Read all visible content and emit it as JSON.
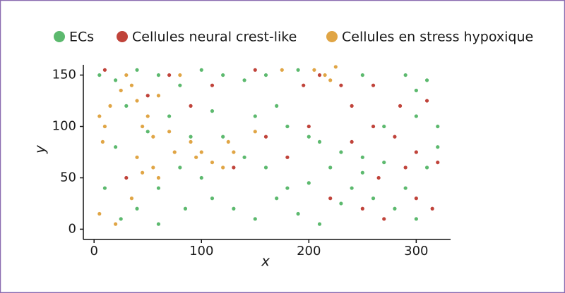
{
  "chart_data": {
    "type": "scatter",
    "x_label": "x",
    "y_label": "y",
    "xlim": [
      -10,
      332
    ],
    "ylim": [
      -10,
      160
    ],
    "xticks": [
      0,
      100,
      200,
      300
    ],
    "yticks": [
      0,
      50,
      100,
      150
    ],
    "series": [
      {
        "name": "ECs",
        "color": "#5cb96e",
        "x": [
          5,
          20,
          40,
          60,
          80,
          100,
          120,
          140,
          160,
          190,
          250,
          290,
          300,
          310,
          30,
          70,
          110,
          150,
          180,
          200,
          210,
          230,
          250,
          270,
          300,
          320,
          20,
          50,
          80,
          100,
          120,
          140,
          160,
          180,
          200,
          220,
          240,
          260,
          280,
          300,
          10,
          25,
          40,
          60,
          85,
          110,
          130,
          150,
          170,
          190,
          210,
          230,
          250,
          270,
          290,
          310,
          320,
          60,
          90,
          170
        ],
        "values": [
          150,
          145,
          155,
          150,
          140,
          155,
          150,
          145,
          150,
          155,
          150,
          150,
          135,
          145,
          120,
          110,
          115,
          110,
          100,
          90,
          85,
          75,
          70,
          100,
          110,
          80,
          80,
          95,
          60,
          50,
          90,
          70,
          60,
          40,
          45,
          60,
          40,
          30,
          20,
          10,
          40,
          10,
          20,
          5,
          20,
          30,
          20,
          10,
          30,
          15,
          5,
          25,
          55,
          65,
          40,
          60,
          100,
          40,
          90,
          120
        ]
      },
      {
        "name": "Cellules neural crest-like",
        "color": "#c0433a",
        "x": [
          10,
          70,
          150,
          210,
          240,
          260,
          280,
          300,
          320,
          250,
          270,
          300,
          315,
          230,
          260,
          285,
          200,
          220,
          180,
          160,
          30,
          50,
          110,
          130,
          90,
          290,
          310,
          240,
          265,
          195
        ],
        "values": [
          155,
          150,
          155,
          150,
          120,
          100,
          90,
          75,
          65,
          20,
          10,
          30,
          20,
          140,
          140,
          120,
          100,
          30,
          70,
          90,
          50,
          130,
          140,
          60,
          120,
          60,
          125,
          85,
          50,
          140
        ]
      },
      {
        "name": "Cellules en stress hypoxique",
        "color": "#e0a545",
        "x": [
          5,
          10,
          15,
          8,
          25,
          35,
          40,
          50,
          30,
          60,
          45,
          55,
          70,
          40,
          45,
          55,
          60,
          75,
          90,
          95,
          100,
          110,
          120,
          130,
          125,
          205,
          215,
          220,
          225,
          20,
          5,
          35,
          80,
          150,
          175
        ],
        "values": [
          110,
          100,
          120,
          85,
          135,
          140,
          125,
          110,
          150,
          130,
          100,
          90,
          95,
          70,
          55,
          60,
          50,
          75,
          85,
          70,
          75,
          65,
          60,
          75,
          85,
          155,
          150,
          145,
          158,
          5,
          15,
          30,
          150,
          95,
          155
        ]
      }
    ]
  }
}
